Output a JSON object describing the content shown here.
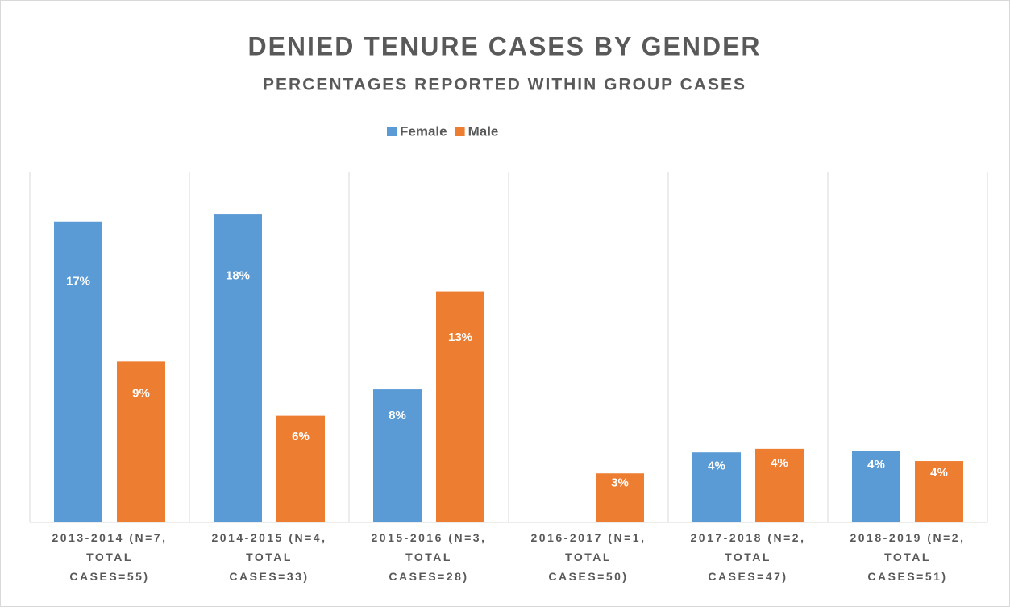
{
  "chart_data": {
    "type": "bar",
    "title": "DENIED TENURE CASES BY GENDER",
    "subtitle": "PERCENTAGES REPORTED WITHIN GROUP CASES",
    "categories": [
      "2013-2014 (N=7, TOTAL CASES=55)",
      "2014-2015 (N=4, TOTAL CASES=33)",
      "2015-2016 (N=3, TOTAL CASES=28)",
      "2016-2017 (N=1, TOTAL CASES=50)",
      "2017-2018 (N=2, TOTAL CASES=47)",
      "2018-2019 (N=2, TOTAL CASES=51)"
    ],
    "series": [
      {
        "name": "Female",
        "color": "#5b9bd5",
        "values": [
          17.2,
          17.6,
          7.6,
          null,
          4.0,
          4.1
        ],
        "value_labels": [
          "17%",
          "18%",
          "8%",
          null,
          "4%",
          "4%"
        ]
      },
      {
        "name": "Male",
        "color": "#ed7d31",
        "values": [
          9.2,
          6.1,
          13.2,
          2.8,
          4.2,
          3.5
        ],
        "value_labels": [
          "9%",
          "6%",
          "13%",
          "3%",
          "4%",
          "4%"
        ]
      }
    ],
    "ylim": [
      0,
      20
    ],
    "legend": "top"
  }
}
